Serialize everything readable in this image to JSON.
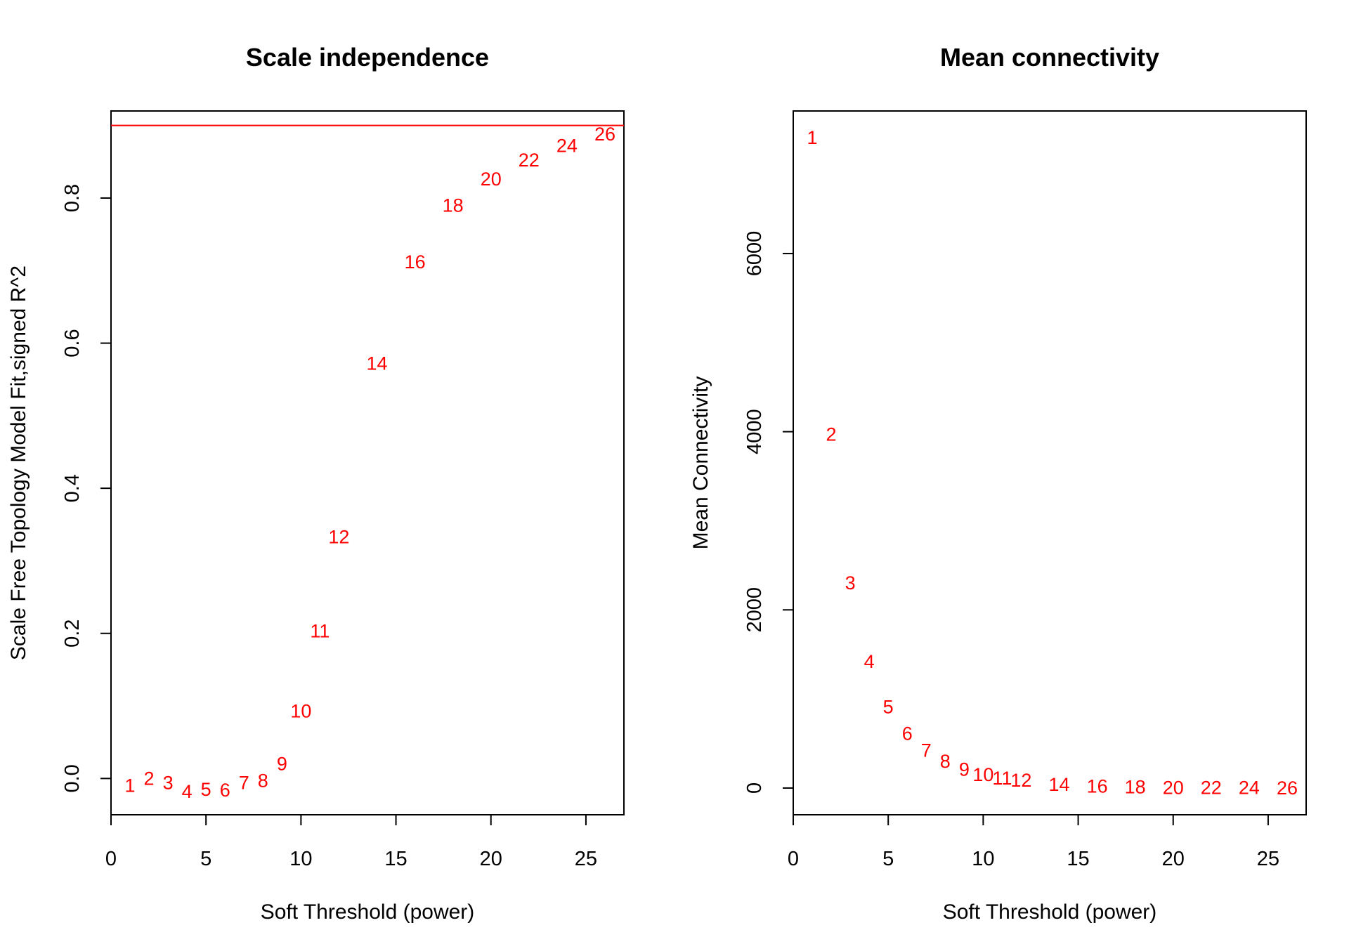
{
  "colors": {
    "points": "#ff0000",
    "cutoff_line": "#ff0000",
    "axes": "#000000"
  },
  "chart_data": [
    {
      "type": "scatter",
      "title": "Scale independence",
      "xlabel": "Soft Threshold (power)",
      "ylabel": "Scale Free Topology Model Fit,signed R^2",
      "xlim": [
        0,
        27
      ],
      "ylim": [
        -0.05,
        0.92
      ],
      "xticks": [
        0,
        5,
        10,
        15,
        20,
        25
      ],
      "yticks": [
        0.0,
        0.2,
        0.4,
        0.6,
        0.8
      ],
      "ytick_labels": [
        "0.0",
        "0.2",
        "0.4",
        "0.6",
        "0.8"
      ],
      "grid": false,
      "marker": "text labels of power",
      "hline": {
        "y": 0.9,
        "color": "#ff0000"
      },
      "points": [
        {
          "label": "1",
          "x": 1,
          "y": -0.01
        },
        {
          "label": "2",
          "x": 2,
          "y": 0.0
        },
        {
          "label": "3",
          "x": 3,
          "y": -0.006
        },
        {
          "label": "4",
          "x": 4,
          "y": -0.018
        },
        {
          "label": "5",
          "x": 5,
          "y": -0.015
        },
        {
          "label": "6",
          "x": 6,
          "y": -0.016
        },
        {
          "label": "7",
          "x": 7,
          "y": -0.006
        },
        {
          "label": "8",
          "x": 8,
          "y": -0.003
        },
        {
          "label": "9",
          "x": 9,
          "y": 0.02
        },
        {
          "label": "10",
          "x": 10,
          "y": 0.093
        },
        {
          "label": "11",
          "x": 11,
          "y": 0.203
        },
        {
          "label": "12",
          "x": 12,
          "y": 0.333
        },
        {
          "label": "14",
          "x": 14,
          "y": 0.572
        },
        {
          "label": "16",
          "x": 16,
          "y": 0.712
        },
        {
          "label": "18",
          "x": 18,
          "y": 0.79
        },
        {
          "label": "20",
          "x": 20,
          "y": 0.826
        },
        {
          "label": "22",
          "x": 22,
          "y": 0.852
        },
        {
          "label": "24",
          "x": 24,
          "y": 0.872
        },
        {
          "label": "26",
          "x": 26,
          "y": 0.888
        }
      ]
    },
    {
      "type": "scatter",
      "title": "Mean connectivity",
      "xlabel": "Soft Threshold (power)",
      "ylabel": "Mean Connectivity",
      "xlim": [
        0,
        27
      ],
      "ylim": [
        -300,
        7600
      ],
      "xticks": [
        0,
        5,
        10,
        15,
        20,
        25
      ],
      "yticks": [
        0,
        2000,
        4000,
        6000
      ],
      "ytick_labels": [
        "0",
        "2000",
        "4000",
        "6000"
      ],
      "grid": false,
      "marker": "text labels of power",
      "points": [
        {
          "label": "1",
          "x": 1,
          "y": 7300
        },
        {
          "label": "2",
          "x": 2,
          "y": 3970
        },
        {
          "label": "3",
          "x": 3,
          "y": 2300
        },
        {
          "label": "4",
          "x": 4,
          "y": 1420
        },
        {
          "label": "5",
          "x": 5,
          "y": 910
        },
        {
          "label": "6",
          "x": 6,
          "y": 610
        },
        {
          "label": "7",
          "x": 7,
          "y": 420
        },
        {
          "label": "8",
          "x": 8,
          "y": 300
        },
        {
          "label": "9",
          "x": 9,
          "y": 210
        },
        {
          "label": "10",
          "x": 10,
          "y": 150
        },
        {
          "label": "11",
          "x": 11,
          "y": 110
        },
        {
          "label": "12",
          "x": 12,
          "y": 85
        },
        {
          "label": "14",
          "x": 14,
          "y": 40
        },
        {
          "label": "16",
          "x": 16,
          "y": 20
        },
        {
          "label": "18",
          "x": 18,
          "y": 10
        },
        {
          "label": "20",
          "x": 20,
          "y": 5
        },
        {
          "label": "22",
          "x": 22,
          "y": 3
        },
        {
          "label": "24",
          "x": 24,
          "y": 2
        },
        {
          "label": "26",
          "x": 26,
          "y": 1
        }
      ]
    }
  ]
}
